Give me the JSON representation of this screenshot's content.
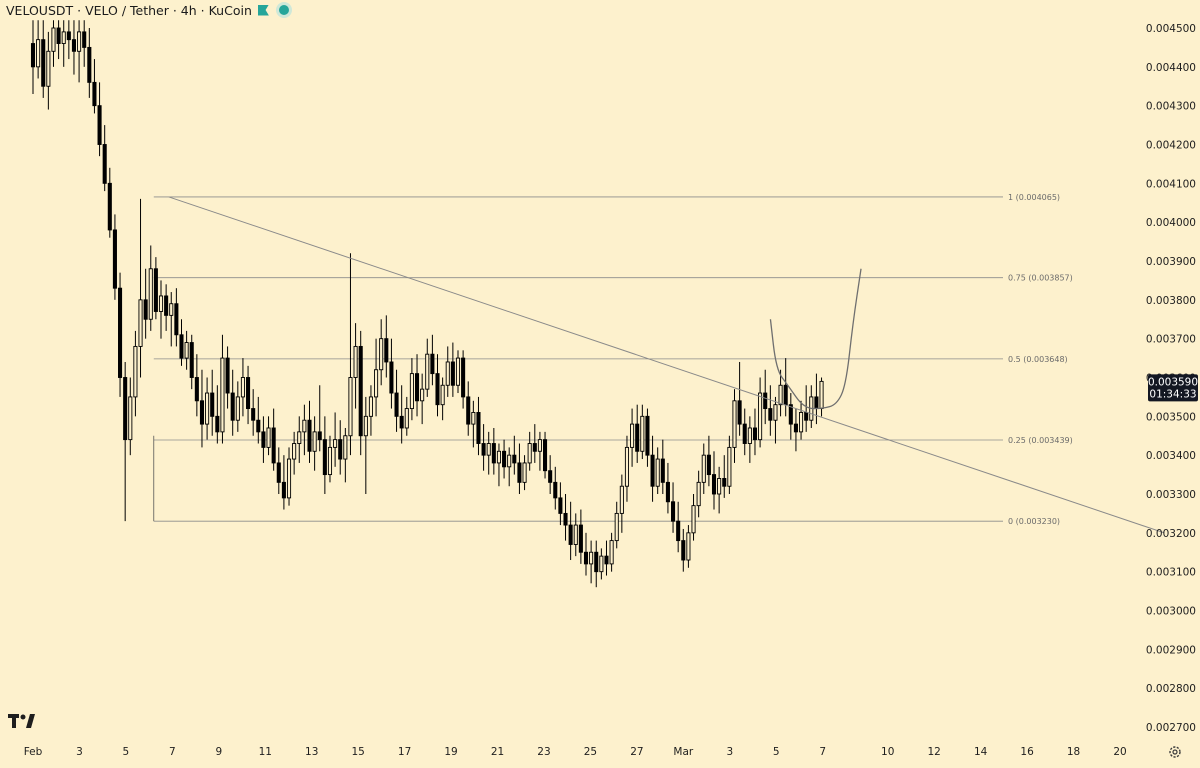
{
  "header": {
    "title": "VELOUSDT · VELO / Tether · 4h · KuCoin"
  },
  "chart_data": {
    "type": "candlestick",
    "symbol": "VELOUSDT",
    "timeframe": "4h",
    "exchange": "KuCoin",
    "ylim": [
      0.00267,
      0.00452
    ],
    "xlim": [
      0,
      48.5
    ],
    "y_ticks": [
      "0.004500",
      "0.004400",
      "0.004300",
      "0.004200",
      "0.004100",
      "0.004000",
      "0.003900",
      "0.003800",
      "0.003700",
      "0.003600",
      "0.003500",
      "0.003400",
      "0.003300",
      "0.003200",
      "0.003100",
      "0.003000",
      "0.002900",
      "0.002800",
      "0.002700"
    ],
    "x_ticks": [
      {
        "day": 0,
        "label": "Feb"
      },
      {
        "day": 2,
        "label": "3"
      },
      {
        "day": 4,
        "label": "5"
      },
      {
        "day": 6,
        "label": "7"
      },
      {
        "day": 8,
        "label": "9"
      },
      {
        "day": 10,
        "label": "11"
      },
      {
        "day": 12,
        "label": "13"
      },
      {
        "day": 14,
        "label": "15"
      },
      {
        "day": 16,
        "label": "17"
      },
      {
        "day": 18,
        "label": "19"
      },
      {
        "day": 20,
        "label": "21"
      },
      {
        "day": 22,
        "label": "23"
      },
      {
        "day": 24,
        "label": "25"
      },
      {
        "day": 26,
        "label": "27"
      },
      {
        "day": 28,
        "label": "Mar"
      },
      {
        "day": 30,
        "label": "3"
      },
      {
        "day": 32,
        "label": "5"
      },
      {
        "day": 34,
        "label": "7"
      },
      {
        "day": 36.8,
        "label": "10"
      },
      {
        "day": 38.8,
        "label": "12"
      },
      {
        "day": 40.8,
        "label": "14"
      },
      {
        "day": 42.8,
        "label": "16"
      },
      {
        "day": 44.8,
        "label": "18"
      },
      {
        "day": 46.8,
        "label": "20"
      }
    ],
    "fib_levels": [
      {
        "level": "1",
        "price": 0.004065,
        "label": "1 (0.004065)"
      },
      {
        "level": "0.75",
        "price": 0.003857,
        "label": "0.75 (0.003857)"
      },
      {
        "level": "0.5",
        "price": 0.003648,
        "label": "0.5 (0.003648)"
      },
      {
        "level": "0.25",
        "price": 0.003439,
        "label": "0.25 (0.003439)"
      },
      {
        "level": "0",
        "price": 0.00323,
        "label": "0 (0.003230)"
      }
    ],
    "fib_range": {
      "x_start": 5.2,
      "x_end": 42.3
    },
    "trendline": {
      "x1": 5.85,
      "y1": 0.004065,
      "x2": 48.7,
      "y2": 0.0032
    },
    "last_price": {
      "value": "0.003590",
      "countdown": "01:34:33"
    },
    "projection_path": [
      [
        31.75,
        0.00375
      ],
      [
        32.0,
        0.00362
      ],
      [
        32.5,
        0.00358
      ],
      [
        33.2,
        0.00352
      ],
      [
        34.0,
        0.00352
      ],
      [
        34.6,
        0.00353
      ],
      [
        35.0,
        0.00358
      ],
      [
        35.3,
        0.00374
      ],
      [
        35.65,
        0.00388
      ]
    ],
    "candles": [
      {
        "o": 0.00446,
        "h": 0.00452,
        "l": 0.00433,
        "c": 0.0044
      },
      {
        "o": 0.0044,
        "h": 0.00452,
        "l": 0.00437,
        "c": 0.00447
      },
      {
        "o": 0.00447,
        "h": 0.00452,
        "l": 0.00432,
        "c": 0.00435
      },
      {
        "o": 0.00435,
        "h": 0.00449,
        "l": 0.00429,
        "c": 0.00444
      },
      {
        "o": 0.00444,
        "h": 0.00452,
        "l": 0.0044,
        "c": 0.0045
      },
      {
        "o": 0.0045,
        "h": 0.00452,
        "l": 0.00442,
        "c": 0.00446
      },
      {
        "o": 0.00446,
        "h": 0.00452,
        "l": 0.0044,
        "c": 0.00449
      },
      {
        "o": 0.00449,
        "h": 0.00452,
        "l": 0.00442,
        "c": 0.00447
      },
      {
        "o": 0.00447,
        "h": 0.00452,
        "l": 0.00438,
        "c": 0.00444
      },
      {
        "o": 0.00444,
        "h": 0.00452,
        "l": 0.00436,
        "c": 0.00449
      },
      {
        "o": 0.00449,
        "h": 0.00452,
        "l": 0.0044,
        "c": 0.00445
      },
      {
        "o": 0.00445,
        "h": 0.0045,
        "l": 0.00432,
        "c": 0.00436
      },
      {
        "o": 0.00436,
        "h": 0.00442,
        "l": 0.00428,
        "c": 0.0043
      },
      {
        "o": 0.0043,
        "h": 0.00436,
        "l": 0.00417,
        "c": 0.0042
      },
      {
        "o": 0.0042,
        "h": 0.00425,
        "l": 0.00408,
        "c": 0.0041
      },
      {
        "o": 0.0041,
        "h": 0.00414,
        "l": 0.00396,
        "c": 0.00398
      },
      {
        "o": 0.00398,
        "h": 0.00402,
        "l": 0.0038,
        "c": 0.00383
      },
      {
        "o": 0.00383,
        "h": 0.00387,
        "l": 0.00355,
        "c": 0.0036
      },
      {
        "o": 0.0036,
        "h": 0.00364,
        "l": 0.00323,
        "c": 0.00344
      },
      {
        "o": 0.00344,
        "h": 0.0036,
        "l": 0.0034,
        "c": 0.00355
      },
      {
        "o": 0.00355,
        "h": 0.00372,
        "l": 0.0035,
        "c": 0.00368
      },
      {
        "o": 0.00368,
        "h": 0.00406,
        "l": 0.0036,
        "c": 0.0038
      },
      {
        "o": 0.0038,
        "h": 0.00388,
        "l": 0.0037,
        "c": 0.00375
      },
      {
        "o": 0.00375,
        "h": 0.00394,
        "l": 0.00372,
        "c": 0.00388
      },
      {
        "o": 0.00388,
        "h": 0.00391,
        "l": 0.00375,
        "c": 0.00377
      },
      {
        "o": 0.00377,
        "h": 0.00385,
        "l": 0.0037,
        "c": 0.00381
      },
      {
        "o": 0.00381,
        "h": 0.00384,
        "l": 0.00372,
        "c": 0.00376
      },
      {
        "o": 0.00376,
        "h": 0.00382,
        "l": 0.00368,
        "c": 0.00379
      },
      {
        "o": 0.00379,
        "h": 0.00383,
        "l": 0.00368,
        "c": 0.00371
      },
      {
        "o": 0.00371,
        "h": 0.00375,
        "l": 0.00363,
        "c": 0.00365
      },
      {
        "o": 0.00365,
        "h": 0.00372,
        "l": 0.00362,
        "c": 0.00369
      },
      {
        "o": 0.00369,
        "h": 0.00371,
        "l": 0.00357,
        "c": 0.0036
      },
      {
        "o": 0.0036,
        "h": 0.00366,
        "l": 0.0035,
        "c": 0.00354
      },
      {
        "o": 0.00354,
        "h": 0.00362,
        "l": 0.00342,
        "c": 0.00348
      },
      {
        "o": 0.00348,
        "h": 0.0036,
        "l": 0.00344,
        "c": 0.00356
      },
      {
        "o": 0.00356,
        "h": 0.00362,
        "l": 0.00345,
        "c": 0.0035
      },
      {
        "o": 0.0035,
        "h": 0.00358,
        "l": 0.00343,
        "c": 0.00346
      },
      {
        "o": 0.00346,
        "h": 0.00371,
        "l": 0.00343,
        "c": 0.00365
      },
      {
        "o": 0.00365,
        "h": 0.00368,
        "l": 0.00352,
        "c": 0.00356
      },
      {
        "o": 0.00356,
        "h": 0.00362,
        "l": 0.00345,
        "c": 0.00349
      },
      {
        "o": 0.00349,
        "h": 0.00359,
        "l": 0.00346,
        "c": 0.00355
      },
      {
        "o": 0.00355,
        "h": 0.00365,
        "l": 0.0035,
        "c": 0.0036
      },
      {
        "o": 0.0036,
        "h": 0.00363,
        "l": 0.00348,
        "c": 0.00352
      },
      {
        "o": 0.00352,
        "h": 0.00357,
        "l": 0.00345,
        "c": 0.00349
      },
      {
        "o": 0.00349,
        "h": 0.00355,
        "l": 0.00343,
        "c": 0.00346
      },
      {
        "o": 0.00346,
        "h": 0.0035,
        "l": 0.00338,
        "c": 0.00342
      },
      {
        "o": 0.00342,
        "h": 0.0035,
        "l": 0.0034,
        "c": 0.00347
      },
      {
        "o": 0.00347,
        "h": 0.00352,
        "l": 0.00336,
        "c": 0.00338
      },
      {
        "o": 0.00338,
        "h": 0.00342,
        "l": 0.0033,
        "c": 0.00333
      },
      {
        "o": 0.00333,
        "h": 0.0034,
        "l": 0.00326,
        "c": 0.00329
      },
      {
        "o": 0.00329,
        "h": 0.00342,
        "l": 0.00327,
        "c": 0.00339
      },
      {
        "o": 0.00339,
        "h": 0.00346,
        "l": 0.00335,
        "c": 0.00343
      },
      {
        "o": 0.00343,
        "h": 0.0035,
        "l": 0.00338,
        "c": 0.00346
      },
      {
        "o": 0.00346,
        "h": 0.00353,
        "l": 0.0034,
        "c": 0.00349
      },
      {
        "o": 0.00349,
        "h": 0.00354,
        "l": 0.00338,
        "c": 0.00341
      },
      {
        "o": 0.00341,
        "h": 0.0035,
        "l": 0.00336,
        "c": 0.00346
      },
      {
        "o": 0.00346,
        "h": 0.00358,
        "l": 0.00341,
        "c": 0.00344
      },
      {
        "o": 0.00344,
        "h": 0.0035,
        "l": 0.0033,
        "c": 0.00335
      },
      {
        "o": 0.00335,
        "h": 0.00345,
        "l": 0.00333,
        "c": 0.00342
      },
      {
        "o": 0.00342,
        "h": 0.00351,
        "l": 0.00337,
        "c": 0.00344
      },
      {
        "o": 0.00344,
        "h": 0.00349,
        "l": 0.00335,
        "c": 0.00339
      },
      {
        "o": 0.00339,
        "h": 0.00347,
        "l": 0.00333,
        "c": 0.00345
      },
      {
        "o": 0.00345,
        "h": 0.00392,
        "l": 0.0034,
        "c": 0.0036
      },
      {
        "o": 0.0036,
        "h": 0.00374,
        "l": 0.00352,
        "c": 0.00368
      },
      {
        "o": 0.00368,
        "h": 0.00372,
        "l": 0.0034,
        "c": 0.00345
      },
      {
        "o": 0.00345,
        "h": 0.00355,
        "l": 0.0033,
        "c": 0.0035
      },
      {
        "o": 0.0035,
        "h": 0.00358,
        "l": 0.00345,
        "c": 0.00355
      },
      {
        "o": 0.00355,
        "h": 0.0037,
        "l": 0.0035,
        "c": 0.00362
      },
      {
        "o": 0.00362,
        "h": 0.00375,
        "l": 0.00358,
        "c": 0.0037
      },
      {
        "o": 0.0037,
        "h": 0.00376,
        "l": 0.0036,
        "c": 0.00364
      },
      {
        "o": 0.00364,
        "h": 0.0037,
        "l": 0.00352,
        "c": 0.00356
      },
      {
        "o": 0.00356,
        "h": 0.00362,
        "l": 0.00346,
        "c": 0.0035
      },
      {
        "o": 0.0035,
        "h": 0.00358,
        "l": 0.00343,
        "c": 0.00347
      },
      {
        "o": 0.00347,
        "h": 0.00355,
        "l": 0.00345,
        "c": 0.00352
      },
      {
        "o": 0.00352,
        "h": 0.00365,
        "l": 0.00349,
        "c": 0.00361
      },
      {
        "o": 0.00361,
        "h": 0.00366,
        "l": 0.0035,
        "c": 0.00354
      },
      {
        "o": 0.00354,
        "h": 0.00361,
        "l": 0.00348,
        "c": 0.00357
      },
      {
        "o": 0.00357,
        "h": 0.0037,
        "l": 0.00355,
        "c": 0.00366
      },
      {
        "o": 0.00366,
        "h": 0.00371,
        "l": 0.00358,
        "c": 0.00361
      },
      {
        "o": 0.00361,
        "h": 0.00366,
        "l": 0.0035,
        "c": 0.00353
      },
      {
        "o": 0.00353,
        "h": 0.0036,
        "l": 0.00349,
        "c": 0.00358
      },
      {
        "o": 0.00358,
        "h": 0.00368,
        "l": 0.00355,
        "c": 0.00364
      },
      {
        "o": 0.00364,
        "h": 0.00369,
        "l": 0.00355,
        "c": 0.00358
      },
      {
        "o": 0.00358,
        "h": 0.00367,
        "l": 0.00356,
        "c": 0.00365
      },
      {
        "o": 0.00365,
        "h": 0.00367,
        "l": 0.00352,
        "c": 0.00355
      },
      {
        "o": 0.00355,
        "h": 0.00359,
        "l": 0.00345,
        "c": 0.00348
      },
      {
        "o": 0.00348,
        "h": 0.00354,
        "l": 0.00342,
        "c": 0.00351
      },
      {
        "o": 0.00351,
        "h": 0.00355,
        "l": 0.0034,
        "c": 0.00343
      },
      {
        "o": 0.00343,
        "h": 0.00348,
        "l": 0.00336,
        "c": 0.0034
      },
      {
        "o": 0.0034,
        "h": 0.00346,
        "l": 0.00335,
        "c": 0.00343
      },
      {
        "o": 0.00343,
        "h": 0.00347,
        "l": 0.00335,
        "c": 0.00338
      },
      {
        "o": 0.00338,
        "h": 0.00343,
        "l": 0.00332,
        "c": 0.00341
      },
      {
        "o": 0.00341,
        "h": 0.00344,
        "l": 0.00334,
        "c": 0.00337
      },
      {
        "o": 0.00337,
        "h": 0.00342,
        "l": 0.00332,
        "c": 0.0034
      },
      {
        "o": 0.0034,
        "h": 0.00345,
        "l": 0.00335,
        "c": 0.00338
      },
      {
        "o": 0.00338,
        "h": 0.00343,
        "l": 0.0033,
        "c": 0.00333
      },
      {
        "o": 0.00333,
        "h": 0.0034,
        "l": 0.00331,
        "c": 0.00338
      },
      {
        "o": 0.00338,
        "h": 0.00346,
        "l": 0.00336,
        "c": 0.00343
      },
      {
        "o": 0.00343,
        "h": 0.00348,
        "l": 0.00338,
        "c": 0.00341
      },
      {
        "o": 0.00341,
        "h": 0.00346,
        "l": 0.00336,
        "c": 0.00344
      },
      {
        "o": 0.00344,
        "h": 0.00346,
        "l": 0.00334,
        "c": 0.00336
      },
      {
        "o": 0.00336,
        "h": 0.0034,
        "l": 0.0033,
        "c": 0.00333
      },
      {
        "o": 0.00333,
        "h": 0.00337,
        "l": 0.00326,
        "c": 0.00329
      },
      {
        "o": 0.00329,
        "h": 0.00333,
        "l": 0.00322,
        "c": 0.00325
      },
      {
        "o": 0.00325,
        "h": 0.0033,
        "l": 0.00318,
        "c": 0.00322
      },
      {
        "o": 0.00322,
        "h": 0.00328,
        "l": 0.00313,
        "c": 0.00317
      },
      {
        "o": 0.00317,
        "h": 0.00325,
        "l": 0.00314,
        "c": 0.00322
      },
      {
        "o": 0.00322,
        "h": 0.00326,
        "l": 0.00312,
        "c": 0.00315
      },
      {
        "o": 0.00315,
        "h": 0.0032,
        "l": 0.00309,
        "c": 0.00312
      },
      {
        "o": 0.00312,
        "h": 0.00318,
        "l": 0.00307,
        "c": 0.00315
      },
      {
        "o": 0.00315,
        "h": 0.00318,
        "l": 0.00306,
        "c": 0.0031
      },
      {
        "o": 0.0031,
        "h": 0.00316,
        "l": 0.00308,
        "c": 0.00314
      },
      {
        "o": 0.00314,
        "h": 0.00318,
        "l": 0.00309,
        "c": 0.00312
      },
      {
        "o": 0.00312,
        "h": 0.0032,
        "l": 0.0031,
        "c": 0.00318
      },
      {
        "o": 0.00318,
        "h": 0.00328,
        "l": 0.00316,
        "c": 0.00325
      },
      {
        "o": 0.00325,
        "h": 0.00335,
        "l": 0.0032,
        "c": 0.00332
      },
      {
        "o": 0.00332,
        "h": 0.00345,
        "l": 0.00328,
        "c": 0.00342
      },
      {
        "o": 0.00342,
        "h": 0.00352,
        "l": 0.00337,
        "c": 0.00348
      },
      {
        "o": 0.00348,
        "h": 0.00353,
        "l": 0.00338,
        "c": 0.00341
      },
      {
        "o": 0.00341,
        "h": 0.00353,
        "l": 0.00339,
        "c": 0.0035
      },
      {
        "o": 0.0035,
        "h": 0.00352,
        "l": 0.00337,
        "c": 0.0034
      },
      {
        "o": 0.0034,
        "h": 0.00345,
        "l": 0.00328,
        "c": 0.00332
      },
      {
        "o": 0.00332,
        "h": 0.00342,
        "l": 0.0033,
        "c": 0.00339
      },
      {
        "o": 0.00339,
        "h": 0.00344,
        "l": 0.0033,
        "c": 0.00333
      },
      {
        "o": 0.00333,
        "h": 0.00338,
        "l": 0.00325,
        "c": 0.00328
      },
      {
        "o": 0.00328,
        "h": 0.00333,
        "l": 0.0032,
        "c": 0.00323
      },
      {
        "o": 0.00323,
        "h": 0.00328,
        "l": 0.00315,
        "c": 0.00318
      },
      {
        "o": 0.00318,
        "h": 0.00321,
        "l": 0.0031,
        "c": 0.00313
      },
      {
        "o": 0.00313,
        "h": 0.00322,
        "l": 0.00311,
        "c": 0.0032
      },
      {
        "o": 0.0032,
        "h": 0.0033,
        "l": 0.00318,
        "c": 0.00327
      },
      {
        "o": 0.00327,
        "h": 0.00336,
        "l": 0.00324,
        "c": 0.00333
      },
      {
        "o": 0.00333,
        "h": 0.00343,
        "l": 0.0033,
        "c": 0.0034
      },
      {
        "o": 0.0034,
        "h": 0.00345,
        "l": 0.00332,
        "c": 0.00335
      },
      {
        "o": 0.00335,
        "h": 0.00341,
        "l": 0.00326,
        "c": 0.0033
      },
      {
        "o": 0.0033,
        "h": 0.00337,
        "l": 0.00325,
        "c": 0.00334
      },
      {
        "o": 0.00334,
        "h": 0.0034,
        "l": 0.00329,
        "c": 0.00332
      },
      {
        "o": 0.00332,
        "h": 0.00345,
        "l": 0.0033,
        "c": 0.00342
      },
      {
        "o": 0.00342,
        "h": 0.00357,
        "l": 0.00338,
        "c": 0.00354
      },
      {
        "o": 0.00354,
        "h": 0.00364,
        "l": 0.00345,
        "c": 0.00348
      },
      {
        "o": 0.00348,
        "h": 0.00352,
        "l": 0.0034,
        "c": 0.00343
      },
      {
        "o": 0.00343,
        "h": 0.0035,
        "l": 0.00338,
        "c": 0.00347
      },
      {
        "o": 0.00347,
        "h": 0.00352,
        "l": 0.0034,
        "c": 0.00344
      },
      {
        "o": 0.00344,
        "h": 0.0036,
        "l": 0.00342,
        "c": 0.00356
      },
      {
        "o": 0.00356,
        "h": 0.00362,
        "l": 0.00348,
        "c": 0.00352
      },
      {
        "o": 0.00352,
        "h": 0.00358,
        "l": 0.00345,
        "c": 0.00349
      },
      {
        "o": 0.00349,
        "h": 0.00355,
        "l": 0.00343,
        "c": 0.00353
      },
      {
        "o": 0.00353,
        "h": 0.00362,
        "l": 0.0035,
        "c": 0.00358
      },
      {
        "o": 0.00358,
        "h": 0.00365,
        "l": 0.0035,
        "c": 0.00353
      },
      {
        "o": 0.00353,
        "h": 0.00356,
        "l": 0.00344,
        "c": 0.00348
      },
      {
        "o": 0.00348,
        "h": 0.00352,
        "l": 0.00341,
        "c": 0.00346
      },
      {
        "o": 0.00346,
        "h": 0.00354,
        "l": 0.00344,
        "c": 0.00351
      },
      {
        "o": 0.00351,
        "h": 0.00358,
        "l": 0.00346,
        "c": 0.00349
      },
      {
        "o": 0.00349,
        "h": 0.00358,
        "l": 0.00347,
        "c": 0.00355
      },
      {
        "o": 0.00355,
        "h": 0.00361,
        "l": 0.00348,
        "c": 0.00352
      },
      {
        "o": 0.00352,
        "h": 0.0036,
        "l": 0.0035,
        "c": 0.00359
      }
    ]
  },
  "axis": {
    "price_tag_bg": "#131722",
    "candle_color": "#000000",
    "line_color": "#8a8a8a"
  }
}
